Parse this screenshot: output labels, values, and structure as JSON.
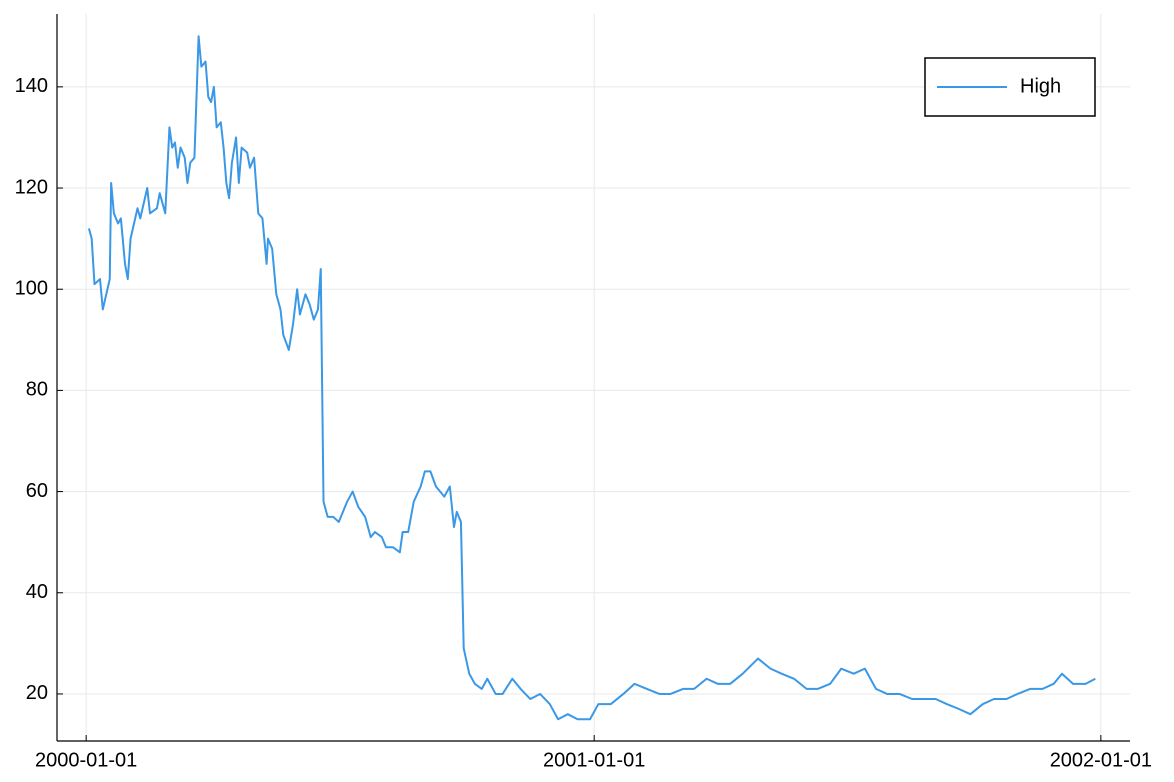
{
  "chart_data": {
    "type": "line",
    "x": [
      "2000-01-03",
      "2000-01-05",
      "2000-01-07",
      "2000-01-11",
      "2000-01-13",
      "2000-01-18",
      "2000-01-19",
      "2000-01-21",
      "2000-01-24",
      "2000-01-26",
      "2000-01-29",
      "2000-01-31",
      "2000-02-02",
      "2000-02-07",
      "2000-02-09",
      "2000-02-14",
      "2000-02-16",
      "2000-02-21",
      "2000-02-23",
      "2000-02-27",
      "2000-03-01",
      "2000-03-03",
      "2000-03-05",
      "2000-03-07",
      "2000-03-09",
      "2000-03-12",
      "2000-03-14",
      "2000-03-16",
      "2000-03-19",
      "2000-03-22",
      "2000-03-24",
      "2000-03-27",
      "2000-03-29",
      "2000-03-31",
      "2000-04-02",
      "2000-04-04",
      "2000-04-07",
      "2000-04-09",
      "2000-04-11",
      "2000-04-13",
      "2000-04-15",
      "2000-04-18",
      "2000-04-20",
      "2000-04-22",
      "2000-04-26",
      "2000-04-28",
      "2000-05-01",
      "2000-05-04",
      "2000-05-07",
      "2000-05-10",
      "2000-05-11",
      "2000-05-14",
      "2000-05-17",
      "2000-05-20",
      "2000-05-22",
      "2000-05-26",
      "2000-05-29",
      "2000-06-01",
      "2000-06-03",
      "2000-06-07",
      "2000-06-10",
      "2000-06-13",
      "2000-06-16",
      "2000-06-18",
      "2000-06-20",
      "2000-06-23",
      "2000-06-27",
      "2000-07-01",
      "2000-07-04",
      "2000-07-07",
      "2000-07-11",
      "2000-07-15",
      "2000-07-20",
      "2000-07-24",
      "2000-07-27",
      "2000-08-01",
      "2000-08-04",
      "2000-08-09",
      "2000-08-14",
      "2000-08-16",
      "2000-08-20",
      "2000-08-24",
      "2000-08-29",
      "2000-09-01",
      "2000-09-05",
      "2000-09-09",
      "2000-09-15",
      "2000-09-19",
      "2000-09-22",
      "2000-09-24",
      "2000-09-27",
      "2000-09-29",
      "2000-10-03",
      "2000-10-07",
      "2000-10-12",
      "2000-10-16",
      "2000-10-22",
      "2000-10-27",
      "2000-11-03",
      "2000-11-09",
      "2000-11-16",
      "2000-11-23",
      "2000-11-30",
      "2000-12-06",
      "2000-12-13",
      "2000-12-20",
      "2000-12-29",
      "2001-01-04",
      "2001-01-13",
      "2001-01-22",
      "2001-01-30",
      "2001-02-08",
      "2001-02-17",
      "2001-02-25",
      "2001-03-06",
      "2001-03-14",
      "2001-03-23",
      "2001-03-31",
      "2001-04-09",
      "2001-04-18",
      "2001-04-29",
      "2001-05-08",
      "2001-05-16",
      "2001-05-25",
      "2001-06-03",
      "2001-06-11",
      "2001-06-20",
      "2001-06-28",
      "2001-07-07",
      "2001-07-15",
      "2001-07-23",
      "2001-07-31",
      "2001-08-09",
      "2001-08-18",
      "2001-08-26",
      "2001-09-04",
      "2001-09-12",
      "2001-09-21",
      "2001-09-29",
      "2001-10-08",
      "2001-10-16",
      "2001-10-25",
      "2001-11-02",
      "2001-11-11",
      "2001-11-20",
      "2001-11-28",
      "2001-12-04",
      "2001-12-12",
      "2001-12-21",
      "2001-12-28"
    ],
    "series": [
      {
        "name": "High",
        "color": "#3a98e6",
        "values": [
          112,
          110,
          101,
          102,
          96,
          102,
          121,
          115,
          113,
          114,
          105,
          102,
          110,
          116,
          114,
          120,
          115,
          116,
          119,
          115,
          132,
          128,
          129,
          124,
          128,
          126,
          121,
          125,
          126,
          150,
          144,
          145,
          138,
          137,
          140,
          132,
          133,
          128,
          121,
          118,
          125,
          130,
          121,
          128,
          127,
          124,
          126,
          115,
          114,
          105,
          110,
          108,
          99,
          96,
          91,
          88,
          93,
          100,
          95,
          99,
          97,
          94,
          96,
          104,
          58,
          55,
          55,
          54,
          56,
          58,
          60,
          57,
          55,
          51,
          52,
          51,
          49,
          49,
          48,
          52,
          52,
          58,
          61,
          64,
          64,
          61,
          59,
          61,
          53,
          56,
          54,
          29,
          24,
          22,
          21,
          23,
          20,
          20,
          23,
          21,
          19,
          20,
          18,
          15,
          16,
          15,
          15,
          18,
          18,
          20,
          22,
          21,
          20,
          20,
          21,
          21,
          23,
          22,
          22,
          24,
          27,
          25,
          24,
          23,
          21,
          21,
          22,
          25,
          24,
          25,
          21,
          20,
          20,
          19,
          19,
          19,
          18,
          17,
          16,
          18,
          19,
          19,
          20,
          21,
          21,
          22,
          24,
          22,
          22,
          23
        ]
      }
    ],
    "xlim": [
      "1999-12-11",
      "2002-01-22"
    ],
    "xticks": [
      "2000-01-01",
      "2001-01-01",
      "2002-01-01"
    ],
    "ylim": [
      10.7,
      154.4
    ],
    "yticks": [
      20,
      40,
      60,
      80,
      100,
      120,
      140
    ],
    "grid": true,
    "legend": "top-right"
  }
}
